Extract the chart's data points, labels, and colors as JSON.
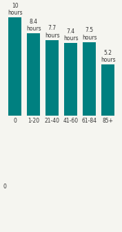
{
  "categories": [
    "0",
    "1-20",
    "21-40",
    "41-60",
    "61-84",
    "85+"
  ],
  "values": [
    10.0,
    8.4,
    7.7,
    7.4,
    7.5,
    5.2
  ],
  "labels": [
    "10\nhours",
    "8.4\nhours",
    "7.7\nhours",
    "7.4\nhours",
    "7.5\nhours",
    "5.2\nhours"
  ],
  "bar_color": "#008080",
  "background_color": "#f5f5f0",
  "ylim": [
    0,
    11.5
  ],
  "ylabel": "",
  "xlabel": "",
  "title": ""
}
